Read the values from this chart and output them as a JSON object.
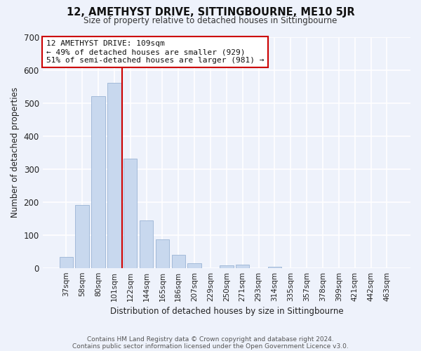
{
  "title": "12, AMETHYST DRIVE, SITTINGBOURNE, ME10 5JR",
  "subtitle": "Size of property relative to detached houses in Sittingbourne",
  "xlabel": "Distribution of detached houses by size in Sittingbourne",
  "ylabel": "Number of detached properties",
  "bar_labels": [
    "37sqm",
    "58sqm",
    "80sqm",
    "101sqm",
    "122sqm",
    "144sqm",
    "165sqm",
    "186sqm",
    "207sqm",
    "229sqm",
    "250sqm",
    "271sqm",
    "293sqm",
    "314sqm",
    "335sqm",
    "357sqm",
    "378sqm",
    "399sqm",
    "421sqm",
    "442sqm",
    "463sqm"
  ],
  "bar_values": [
    33,
    190,
    520,
    560,
    330,
    143,
    87,
    40,
    15,
    0,
    8,
    10,
    0,
    3,
    0,
    0,
    0,
    0,
    0,
    0,
    0
  ],
  "bar_color": "#c8d8ee",
  "bar_edge_color": "#9ab4d4",
  "vline_x": 3.5,
  "vline_color": "#cc0000",
  "annotation_title": "12 AMETHYST DRIVE: 109sqm",
  "annotation_line1": "← 49% of detached houses are smaller (929)",
  "annotation_line2": "51% of semi-detached houses are larger (981) →",
  "annotation_box_color": "#ffffff",
  "annotation_box_edge": "#cc0000",
  "ylim": [
    0,
    700
  ],
  "yticks": [
    0,
    100,
    200,
    300,
    400,
    500,
    600,
    700
  ],
  "footer1": "Contains HM Land Registry data © Crown copyright and database right 2024.",
  "footer2": "Contains public sector information licensed under the Open Government Licence v3.0.",
  "bg_color": "#eef2fb",
  "plot_bg_color": "#eef2fb"
}
